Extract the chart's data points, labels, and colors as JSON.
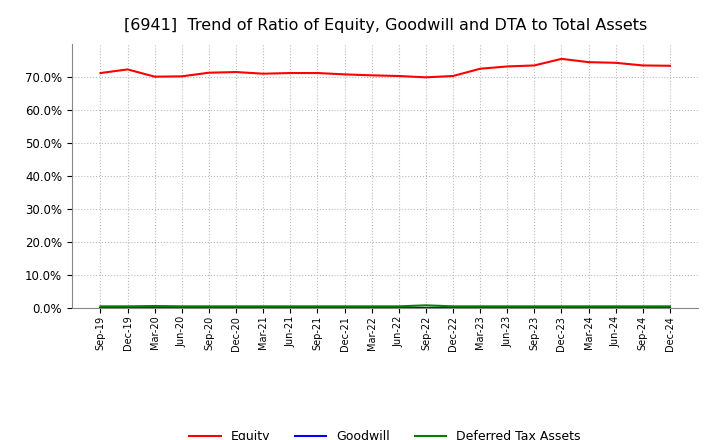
{
  "title": "[6941]  Trend of Ratio of Equity, Goodwill and DTA to Total Assets",
  "x_labels": [
    "Sep-19",
    "Dec-19",
    "Mar-20",
    "Jun-20",
    "Sep-20",
    "Dec-20",
    "Mar-21",
    "Jun-21",
    "Sep-21",
    "Dec-21",
    "Mar-22",
    "Jun-22",
    "Sep-22",
    "Dec-22",
    "Mar-23",
    "Jun-23",
    "Sep-23",
    "Dec-23",
    "Mar-24",
    "Jun-24",
    "Sep-24",
    "Dec-24"
  ],
  "equity": [
    71.2,
    72.3,
    70.1,
    70.2,
    71.3,
    71.5,
    71.0,
    71.2,
    71.2,
    70.8,
    70.5,
    70.3,
    69.9,
    70.3,
    72.5,
    73.2,
    73.5,
    75.5,
    74.5,
    74.3,
    73.5,
    73.4
  ],
  "goodwill": [
    0.0,
    0.0,
    0.0,
    0.0,
    0.0,
    0.0,
    0.0,
    0.0,
    0.0,
    0.0,
    0.0,
    0.0,
    0.0,
    0.0,
    0.0,
    0.0,
    0.0,
    0.0,
    0.0,
    0.0,
    0.0,
    0.0
  ],
  "dta": [
    0.5,
    0.5,
    0.6,
    0.5,
    0.5,
    0.5,
    0.5,
    0.5,
    0.5,
    0.5,
    0.5,
    0.5,
    0.8,
    0.5,
    0.5,
    0.5,
    0.5,
    0.5,
    0.5,
    0.5,
    0.5,
    0.5
  ],
  "equity_color": "#FF0000",
  "goodwill_color": "#0000FF",
  "dta_color": "#008000",
  "ylim": [
    0,
    80
  ],
  "yticks": [
    0,
    10,
    20,
    30,
    40,
    50,
    60,
    70
  ],
  "background_color": "#FFFFFF",
  "plot_bg_color": "#FFFFFF",
  "grid_color": "#BBBBBB",
  "title_fontsize": 11.5
}
